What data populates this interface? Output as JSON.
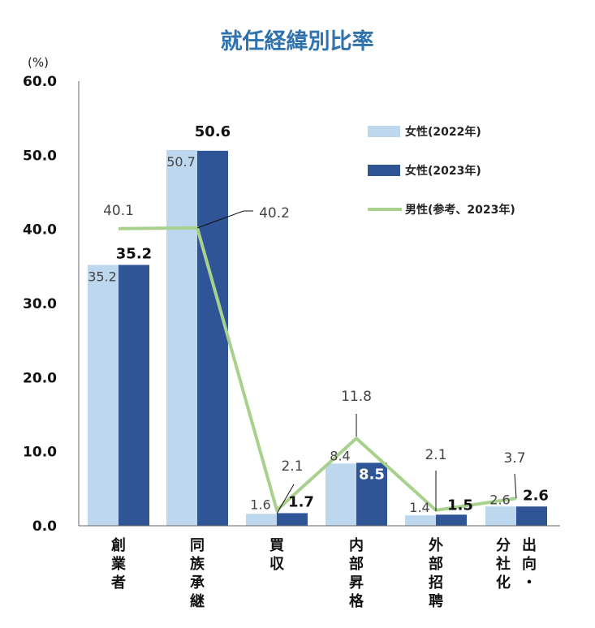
{
  "chart_data": {
    "type": "bar",
    "title": "就任経緯別比率",
    "ylabel": "(%)",
    "ylim": [
      0,
      60
    ],
    "yticks": [
      "0.0",
      "10.0",
      "20.0",
      "30.0",
      "40.0",
      "50.0",
      "60.0"
    ],
    "categories": [
      "創業者",
      "同族承継",
      "買収",
      "内部昇格",
      "外部招聘",
      "出向・分社化"
    ],
    "category_lines": [
      [
        "創業者"
      ],
      [
        "同族承継"
      ],
      [
        "買収"
      ],
      [
        "内部昇格"
      ],
      [
        "外部招聘"
      ],
      [
        "出向・",
        "分社化"
      ]
    ],
    "series": [
      {
        "name": "女性(2022年)",
        "type": "bar",
        "color": "#bdd7ee",
        "values": [
          35.2,
          50.7,
          1.6,
          8.4,
          1.4,
          2.6
        ],
        "labels": [
          "35.2",
          "50.7",
          "1.6",
          "8.4",
          "1.4",
          "2.6"
        ]
      },
      {
        "name": "女性(2023年)",
        "type": "bar",
        "color": "#2f5597",
        "values": [
          35.2,
          50.6,
          1.7,
          8.5,
          1.5,
          2.6
        ],
        "labels": [
          "35.2",
          "50.6",
          "1.7",
          "8.5",
          "1.5",
          "2.6"
        ]
      },
      {
        "name": "男性(参考、2023年)",
        "type": "line",
        "color": "#a9d18e",
        "values": [
          40.1,
          40.2,
          2.1,
          11.8,
          2.1,
          3.7
        ],
        "labels": [
          "40.1",
          "40.2",
          "2.1",
          "11.8",
          "2.1",
          "3.7"
        ]
      }
    ],
    "legend_position": "top-right",
    "grid": false
  }
}
